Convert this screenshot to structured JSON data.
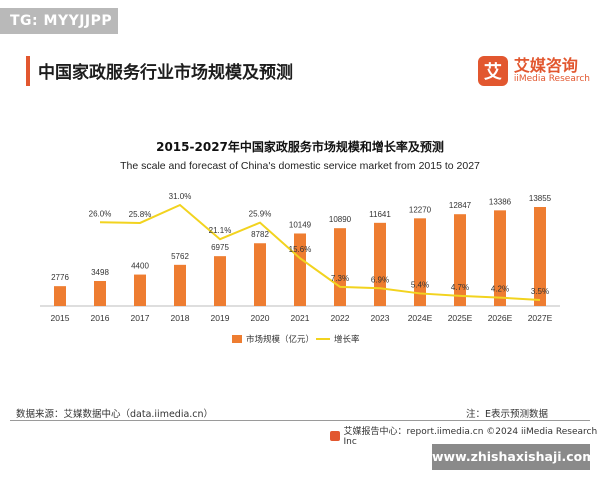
{
  "header": {
    "tg_badge": "TG: MYYJJPP",
    "page_title": "中国家政服务行业市场规模及预测",
    "brand_mark": "艾",
    "brand_cn": "艾媒咨询",
    "brand_en": "iiMedia Research"
  },
  "colors": {
    "bar": "#ee7d31",
    "line": "#f2d31f",
    "accent": "#e2572f"
  },
  "chart_data": {
    "type": "bar",
    "title": "2015-2027年中国家政服务市场规模和增长率及预测",
    "subtitle": "The scale and forecast of China's domestic service market from 2015 to 2027",
    "categories": [
      "2015",
      "2016",
      "2017",
      "2018",
      "2019",
      "2020",
      "2021",
      "2022",
      "2023",
      "2024E",
      "2025E",
      "2026E",
      "2027E"
    ],
    "series": [
      {
        "name": "市场规模（亿元）",
        "type": "bar",
        "values": [
          2776,
          3498,
          4400,
          5762,
          6975,
          8782,
          10149,
          10890,
          11641,
          12270,
          12847,
          13386,
          13855
        ],
        "labels": [
          "2776",
          "3498",
          "4400",
          "5762",
          "6975",
          "8782",
          "10149",
          "10890",
          "11641",
          "12270",
          "12847",
          "13386",
          "13855"
        ]
      },
      {
        "name": "增长率",
        "type": "line",
        "values": [
          null,
          26.0,
          25.8,
          31.0,
          21.1,
          25.9,
          15.6,
          7.3,
          6.9,
          5.4,
          4.7,
          4.2,
          3.5
        ],
        "labels": [
          "",
          "26.0%",
          "25.8%",
          "31.0%",
          "21.1%",
          "25.9%",
          "15.6%",
          "7.3%",
          "6.9%",
          "5.4%",
          "4.7%",
          "4.2%",
          "3.5%"
        ]
      }
    ],
    "bar_ylim": [
      0,
      16000
    ],
    "line_ylim": [
      0,
      40
    ],
    "legend_position": "bottom",
    "grid": false
  },
  "footer": {
    "source": "数据来源：艾媒数据中心（data.iimedia.cn）",
    "note": "注：E表示预测数据",
    "copyright": "艾媒报告中心：report.iimedia.cn    ©2024  iiMedia Research  Inc",
    "watermark": "www.zhishaxishaji.com"
  }
}
